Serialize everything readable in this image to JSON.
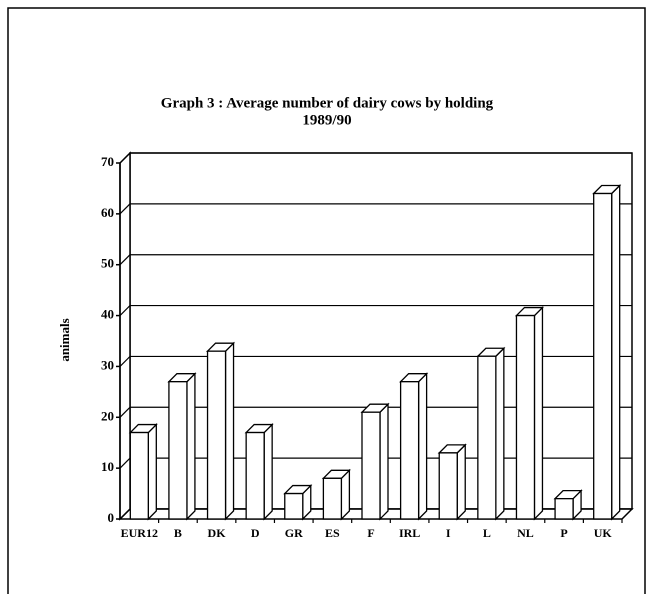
{
  "chart_data": {
    "type": "bar3d",
    "title": "Graph 3 : Average number of dairy cows by holding",
    "subtitle": "1989/90",
    "y_label": "animals",
    "categories": [
      "EUR12",
      "B",
      "DK",
      "D",
      "GR",
      "ES",
      "F",
      "IRL",
      "I",
      "L",
      "NL",
      "P",
      "UK"
    ],
    "values": [
      17,
      27,
      33,
      17,
      5,
      8,
      21,
      27,
      13,
      32,
      40,
      4,
      64
    ],
    "color": "#ffffff",
    "ylim": [
      0,
      70
    ],
    "yticks": [
      0,
      10,
      20,
      30,
      40,
      50,
      60,
      70
    ],
    "grid": true
  }
}
